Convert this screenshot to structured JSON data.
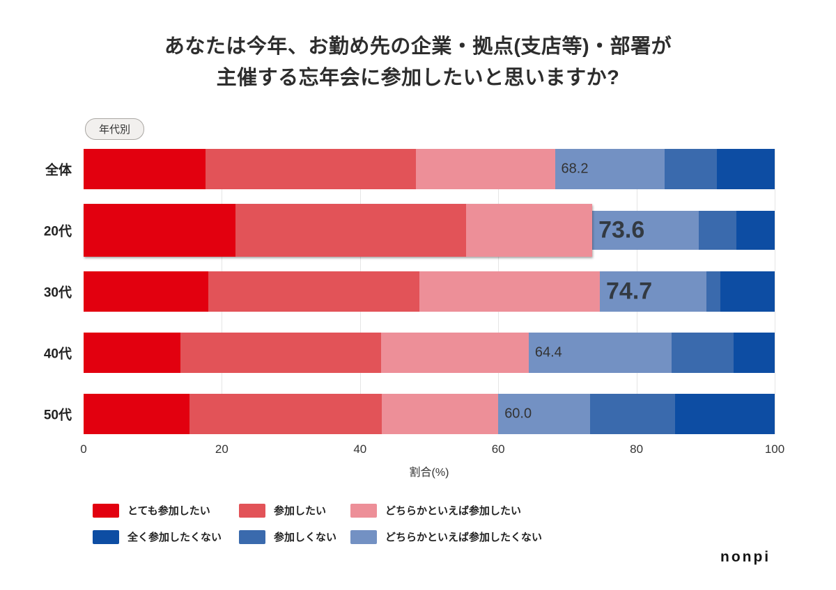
{
  "title": {
    "line1": "あなたは今年、お勤め先の企業・拠点(支店等)・部署が",
    "line2": "主催する忘年会に参加したいと思いますか?"
  },
  "badge": {
    "label": "年代別"
  },
  "footer": {
    "logo_text": "nonpi"
  },
  "chart_data": {
    "type": "bar",
    "stacked": true,
    "orientation": "horizontal",
    "categories": [
      "全体",
      "20代",
      "30代",
      "40代",
      "50代"
    ],
    "series": [
      {
        "name": "とても参加したい",
        "color": "#e2000f",
        "values": [
          17.6,
          22.0,
          18.0,
          14.0,
          15.3
        ]
      },
      {
        "name": "参加したい",
        "color": "#e25358",
        "values": [
          30.5,
          33.3,
          30.6,
          29.0,
          27.8
        ]
      },
      {
        "name": "どちらかといえば参加したい",
        "color": "#ed8f98",
        "values": [
          20.1,
          18.3,
          26.1,
          21.4,
          16.9
        ]
      },
      {
        "name": "どちらかといえば参加したくない",
        "color": "#7391c3",
        "values": [
          15.9,
          15.4,
          15.4,
          20.7,
          13.3
        ]
      },
      {
        "name": "参加しくない",
        "color": "#3a6aad",
        "values": [
          7.5,
          5.5,
          2.0,
          9.0,
          12.3
        ]
      },
      {
        "name": "全く参加したくない",
        "color": "#0d4da3",
        "values": [
          8.4,
          5.5,
          7.9,
          5.9,
          14.4
        ]
      }
    ],
    "positive_group_size": 3,
    "totals": [
      {
        "value": "68.2",
        "size": "small"
      },
      {
        "value": "73.6",
        "size": "large"
      },
      {
        "value": "74.7",
        "size": "large"
      },
      {
        "value": "64.4",
        "size": "small"
      },
      {
        "value": "60.0",
        "size": "small"
      }
    ],
    "highlight_index": 1,
    "x_ticks": [
      "0",
      "20",
      "40",
      "60",
      "80",
      "100"
    ],
    "xlim": [
      0,
      100
    ],
    "xlabel": "割合(%)",
    "grid": true,
    "legend_position": "bottom",
    "legend_rows": [
      [
        "とても参加したい",
        "参加したい",
        "どちらかといえば参加したい"
      ],
      [
        "全く参加したくない",
        "参加しくない",
        "どちらかといえば参加したくない"
      ]
    ]
  }
}
